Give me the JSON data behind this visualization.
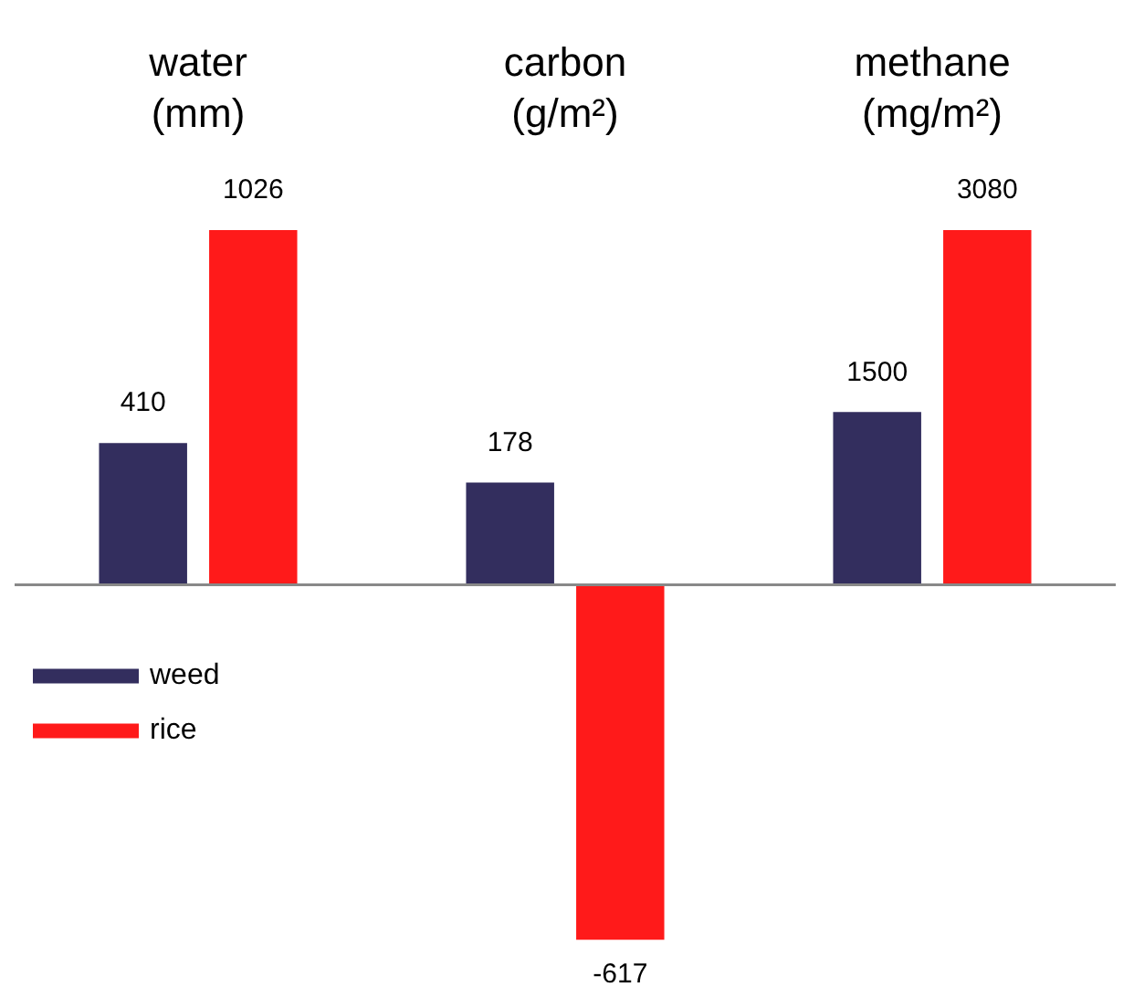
{
  "chart_data": [
    {
      "type": "bar",
      "title": "water",
      "subtitle": "(mm)",
      "categories": [
        null
      ],
      "series": [
        {
          "name": "weed",
          "color": "#332e5e",
          "values": [
            410
          ]
        },
        {
          "name": "rice",
          "color": "#ff1a1a",
          "values": [
            1026
          ]
        }
      ],
      "data_labels": true,
      "legend": "bottom left"
    },
    {
      "type": "bar",
      "title": "carbon",
      "subtitle": "(g/m²)",
      "categories": [
        null
      ],
      "series": [
        {
          "color": "#332e5e",
          "values": [
            178
          ]
        },
        {
          "color": "#ff1a1a",
          "values": [
            -617
          ]
        }
      ],
      "data_labels": true
    },
    {
      "type": "bar",
      "title": "methane",
      "subtitle": "(mg/m²)",
      "categories": [
        null
      ],
      "series": [
        {
          "color": "#332e5e",
          "values": [
            1500
          ]
        },
        {
          "color": "#ff1a1a",
          "values": [
            3080
          ]
        }
      ],
      "data_labels": true
    }
  ]
}
